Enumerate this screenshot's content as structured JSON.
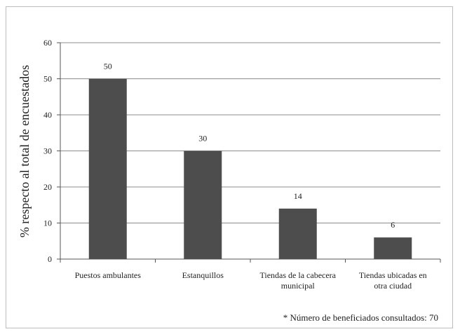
{
  "chart_data": {
    "type": "bar",
    "title": "",
    "xlabel": "",
    "ylabel": "% respecto al total de encuestados",
    "categories": [
      [
        "Puestos ambulantes"
      ],
      [
        "Estanquillos"
      ],
      [
        "Tiendas de la cabecera",
        "municipal"
      ],
      [
        "Tiendas ubicadas en",
        "otra ciudad"
      ]
    ],
    "values": [
      50,
      30,
      14,
      6
    ],
    "value_labels": [
      "50",
      "30",
      "14",
      "6"
    ],
    "ylim": [
      0,
      60
    ],
    "yticks": [
      0,
      10,
      20,
      30,
      40,
      50,
      60
    ],
    "grid": true,
    "legend": "none",
    "bar_color": "#4d4d4d",
    "gridline_color": "#8c8c8c",
    "footnote": "* Número de beneficiados consultados: 70"
  }
}
